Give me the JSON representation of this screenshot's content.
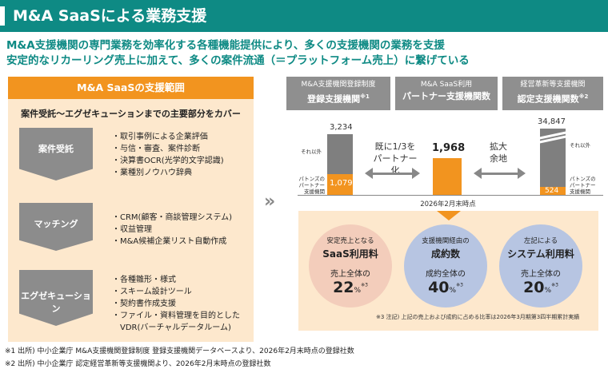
{
  "title": "M&A SaaSによる業務支援",
  "lead_lines": [
    "M&A支援機関の専門業務を効率化する各種機能提供により、多くの支援機関の業務を支援",
    "安定的なリカーリング売上に加えて、多くの案件流通（＝プラットフォーム売上）に繋げている"
  ],
  "panel": {
    "header": "M&A SaaSの支援範囲",
    "subtitle": "案件受託〜エグゼキューションまでの主要部分をカバー",
    "stages": [
      {
        "label": "案件受託",
        "items": [
          "・取引事例による企業評価",
          "・与信・審査、案件診断",
          "・決算書OCR(光学的文字認識)",
          "・業種別ノウハウ辞典"
        ]
      },
      {
        "label": "マッチング",
        "items": [
          "・CRM(顧客・商談管理システム)",
          "・収益管理",
          "・M&A候補企業リスト自動作成"
        ]
      },
      {
        "label": "エグゼキューション",
        "items": [
          "・各種雛形・様式",
          "・スキーム設計ツール",
          "・契約書作成支援",
          "・ファイル・資料管理を目的とした",
          "　VDR(バーチャルデータルーム)"
        ]
      }
    ]
  },
  "arrow_symbol": "»",
  "columns": [
    {
      "line1": "M&A支援機関登録制度",
      "line2": "登録支援機関",
      "sup": "※1"
    },
    {
      "line1": "M&A SaaS利用",
      "line2": "パートナー支援機関数",
      "sup": ""
    },
    {
      "line1": "経営革新等支援機関",
      "line2": "認定支援機関数",
      "sup": "※2"
    }
  ],
  "bars": {
    "left": {
      "total": "3,234",
      "total_value": 3234,
      "partner": "1,079",
      "partner_value": 1079,
      "other_label": "それ以外",
      "partner_label": [
        "パトンズの",
        "パートナー",
        "支援機関"
      ]
    },
    "center": {
      "value": "1,968",
      "value_num": 1968,
      "timestamp": "2026年2月末時点"
    },
    "right": {
      "total": "34,847",
      "total_value": 34847,
      "partner": "524",
      "partner_value": 524,
      "other_label": "それ以外",
      "partner_label": [
        "パトンズの",
        "パートナー",
        "支援機関"
      ]
    }
  },
  "mid_text_left": [
    "既に1/3を",
    "パートナー化"
  ],
  "mid_text_right": [
    "拡大",
    "余地"
  ],
  "circles": [
    {
      "top": "安定売上となる",
      "title": "SaaS利用料",
      "pre": "売上全体の",
      "value": "22",
      "unit": "%",
      "sup": "※3",
      "color": "#f3cdbb"
    },
    {
      "top": "支援機関経由の",
      "title": "成約数",
      "pre": "成約全体の",
      "value": "40",
      "unit": "%",
      "sup": "※3",
      "color": "#b7c5e2"
    },
    {
      "top": "左記による",
      "title": "システム利用料",
      "pre": "売上全体の",
      "value": "20",
      "unit": "%",
      "sup": "※3",
      "color": "#b7c5e2"
    }
  ],
  "note3": "※3 注記) 上記の売上および成約に占める比率は2026年3月期第3四半期累計実績",
  "footnotes": [
    "※1 出所) 中小企業庁 M&A支援機関登録制度 登録支援機関データベースより、2026年2月末時点の登録社数",
    "※2 出所) 中小企業庁 認定経営革新等支援機関より、2026年2月末時点の登録社数"
  ]
}
